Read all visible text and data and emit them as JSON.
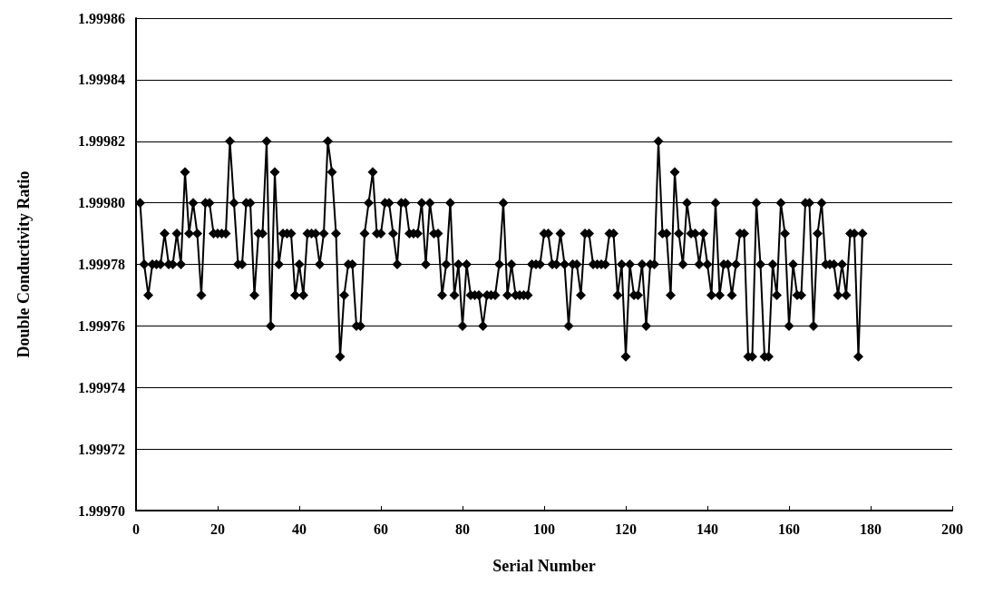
{
  "chart_data": {
    "type": "line",
    "xlabel": "Serial Number",
    "ylabel": "Double Conductivity Ratio",
    "x": [
      1,
      2,
      3,
      4,
      5,
      6,
      7,
      8,
      9,
      10,
      11,
      12,
      13,
      14,
      15,
      16,
      17,
      18,
      19,
      20,
      21,
      22,
      23,
      24,
      25,
      26,
      27,
      28,
      29,
      30,
      31,
      32,
      33,
      34,
      35,
      36,
      37,
      38,
      39,
      40,
      41,
      42,
      43,
      44,
      45,
      46,
      47,
      48,
      49,
      50,
      51,
      52,
      53,
      54,
      55,
      56,
      57,
      58,
      59,
      60,
      61,
      62,
      63,
      64,
      65,
      66,
      67,
      68,
      69,
      70,
      71,
      72,
      73,
      74,
      75,
      76,
      77,
      78,
      79,
      80,
      81,
      82,
      83,
      84,
      85,
      86,
      87,
      88,
      89,
      90,
      91,
      92,
      93,
      94,
      95,
      96,
      97,
      98,
      99,
      100,
      101,
      102,
      103,
      104,
      105,
      106,
      107,
      108,
      109,
      110,
      111,
      112,
      113,
      114,
      115,
      116,
      117,
      118,
      119,
      120,
      121,
      122,
      123,
      124,
      125,
      126,
      127,
      128,
      129,
      130,
      131,
      132,
      133,
      134,
      135,
      136,
      137,
      138,
      139,
      140,
      141,
      142,
      143,
      144,
      145,
      146,
      147,
      148,
      149,
      150,
      151,
      152,
      153,
      154,
      155,
      156,
      157,
      158,
      159,
      160,
      161,
      162,
      163,
      164,
      165,
      166,
      167,
      168,
      169,
      170,
      171,
      172,
      173,
      174,
      175,
      176,
      177,
      178
    ],
    "series": [
      {
        "color": "#000000",
        "values": [
          1.9998,
          1.99978,
          1.99977,
          1.99978,
          1.99978,
          1.99978,
          1.99979,
          1.99978,
          1.99978,
          1.99979,
          1.99978,
          1.99981,
          1.99979,
          1.9998,
          1.99979,
          1.99977,
          1.9998,
          1.9998,
          1.99979,
          1.99979,
          1.99979,
          1.99979,
          1.99982,
          1.9998,
          1.99978,
          1.99978,
          1.9998,
          1.9998,
          1.99977,
          1.99979,
          1.99979,
          1.99982,
          1.99976,
          1.99981,
          1.99978,
          1.99979,
          1.99979,
          1.99979,
          1.99977,
          1.99978,
          1.99977,
          1.99979,
          1.99979,
          1.99979,
          1.99978,
          1.99979,
          1.99982,
          1.99981,
          1.99979,
          1.99975,
          1.99977,
          1.99978,
          1.99978,
          1.99976,
          1.99976,
          1.99979,
          1.9998,
          1.99981,
          1.99979,
          1.99979,
          1.9998,
          1.9998,
          1.99979,
          1.99978,
          1.9998,
          1.9998,
          1.99979,
          1.99979,
          1.99979,
          1.9998,
          1.99978,
          1.9998,
          1.99979,
          1.99979,
          1.99977,
          1.99978,
          1.9998,
          1.99977,
          1.99978,
          1.99976,
          1.99978,
          1.99977,
          1.99977,
          1.99977,
          1.99976,
          1.99977,
          1.99977,
          1.99977,
          1.99978,
          1.9998,
          1.99977,
          1.99978,
          1.99977,
          1.99977,
          1.99977,
          1.99977,
          1.99978,
          1.99978,
          1.99978,
          1.99979,
          1.99979,
          1.99978,
          1.99978,
          1.99979,
          1.99978,
          1.99976,
          1.99978,
          1.99978,
          1.99977,
          1.99979,
          1.99979,
          1.99978,
          1.99978,
          1.99978,
          1.99978,
          1.99979,
          1.99979,
          1.99977,
          1.99978,
          1.99975,
          1.99978,
          1.99977,
          1.99977,
          1.99978,
          1.99976,
          1.99978,
          1.99978,
          1.99982,
          1.99979,
          1.99979,
          1.99977,
          1.99981,
          1.99979,
          1.99978,
          1.9998,
          1.99979,
          1.99979,
          1.99978,
          1.99979,
          1.99978,
          1.99977,
          1.9998,
          1.99977,
          1.99978,
          1.99978,
          1.99977,
          1.99978,
          1.99979,
          1.99979,
          1.99975,
          1.99975,
          1.9998,
          1.99978,
          1.99975,
          1.99975,
          1.99978,
          1.99977,
          1.9998,
          1.99979,
          1.99976,
          1.99978,
          1.99977,
          1.99977,
          1.9998,
          1.9998,
          1.99976,
          1.99979,
          1.9998,
          1.99978,
          1.99978,
          1.99978,
          1.99977,
          1.99978,
          1.99977,
          1.99979,
          1.99979,
          1.99975,
          1.99979
        ]
      }
    ],
    "xlim": [
      0,
      200
    ],
    "xticks": [
      0,
      20,
      40,
      60,
      80,
      100,
      120,
      140,
      160,
      180,
      200
    ],
    "ylim": [
      1.9997,
      1.99986
    ],
    "yticks": [
      {
        "value": 1.9997,
        "label": "1.99970"
      },
      1.99972,
      1.99974,
      1.99976,
      1.99978,
      {
        "value": 1.9998,
        "label": "1.99980"
      },
      1.99982,
      1.99984,
      1.99986
    ],
    "grid": "y",
    "marker": "diamond",
    "line_style": "solid"
  }
}
